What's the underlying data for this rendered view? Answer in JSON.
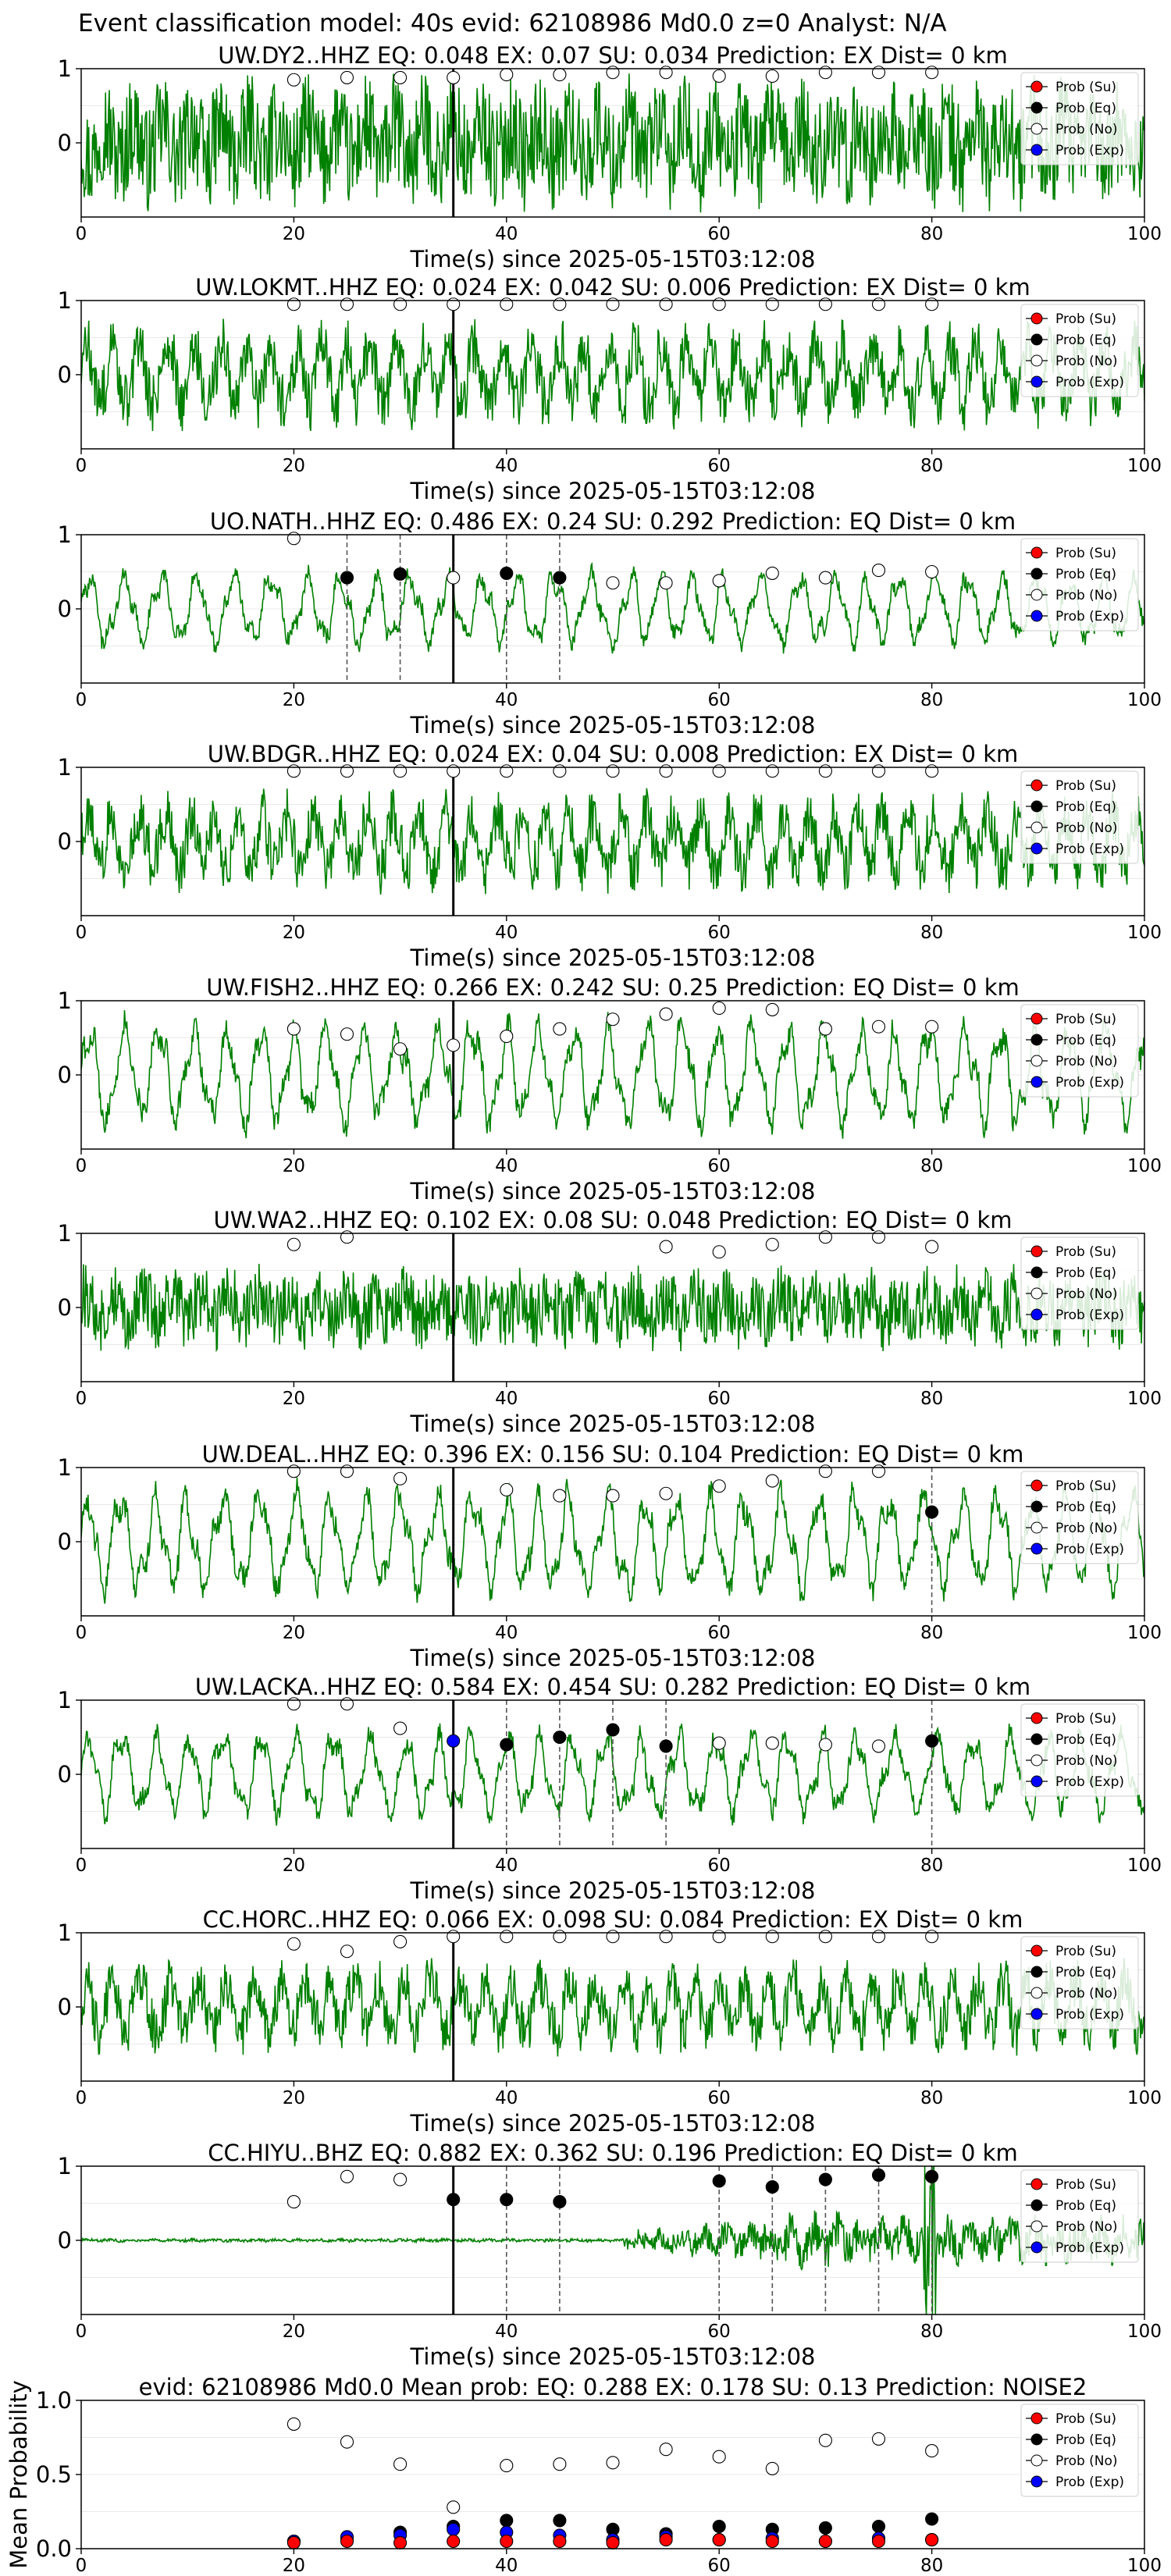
{
  "figure": {
    "suptitle": "Event classification model: 40s evid: 62108986 Md0.0 z=0 Analyst: N/A"
  },
  "colors": {
    "waveform": "#008000",
    "prob_su": "#ff0000",
    "prob_eq": "#000000",
    "prob_no": "#ffffff",
    "prob_exp": "#0000ff",
    "origin_line": "#000000",
    "pick_line": "#555555"
  },
  "legend": [
    "Prob (Su)",
    "Prob (Eq)",
    "Prob (No)",
    "Prob (Exp)"
  ],
  "chart_data": [
    {
      "type": "line",
      "title": "UW.DY2..HHZ   EQ: 0.048  EX: 0.07  SU: 0.034   Prediction: EX    Dist= 0 km",
      "xlabel": "Time(s) since 2025-05-15T03:12:08",
      "xlim": [
        0,
        100
      ],
      "ylim": [
        -1,
        1
      ],
      "xticks": [
        "0",
        "20",
        "40",
        "60",
        "80",
        "100"
      ],
      "yticks": [
        "1",
        "0"
      ],
      "legend_position": "top-right",
      "waveform": {
        "style": "noise",
        "amplitude": 0.95
      },
      "origin_x": 35,
      "dashed_x": [],
      "prob_su": {
        "x": [],
        "y": []
      },
      "prob_eq": {
        "x": [],
        "y": []
      },
      "prob_no": {
        "x": [
          20,
          25,
          30,
          35,
          40,
          45,
          50,
          55,
          60,
          65,
          70,
          75,
          80
        ],
        "y": [
          0.85,
          0.88,
          0.88,
          0.88,
          0.92,
          0.92,
          0.95,
          0.95,
          0.9,
          0.9,
          0.95,
          0.95,
          0.95
        ]
      },
      "prob_exp": {
        "x": [],
        "y": []
      }
    },
    {
      "type": "line",
      "title": "UW.LOKMT..HHZ   EQ: 0.024  EX: 0.042  SU: 0.006   Prediction: EX    Dist= 0 km",
      "xlabel": "Time(s) since 2025-05-15T03:12:08",
      "xlim": [
        0,
        100
      ],
      "ylim": [
        -1,
        1
      ],
      "xticks": [
        "0",
        "20",
        "40",
        "60",
        "80",
        "100"
      ],
      "yticks": [
        "1",
        "0"
      ],
      "legend_position": "top-right",
      "waveform": {
        "style": "mixed",
        "amplitude": 0.85
      },
      "origin_x": 35,
      "dashed_x": [],
      "prob_su": {
        "x": [],
        "y": []
      },
      "prob_eq": {
        "x": [],
        "y": []
      },
      "prob_no": {
        "x": [
          20,
          25,
          30,
          35,
          40,
          45,
          50,
          55,
          60,
          65,
          70,
          75,
          80
        ],
        "y": [
          0.95,
          0.95,
          0.95,
          0.95,
          0.95,
          0.95,
          0.95,
          0.95,
          0.95,
          0.95,
          0.95,
          0.95,
          0.95
        ]
      },
      "prob_exp": {
        "x": [],
        "y": []
      }
    },
    {
      "type": "line",
      "title": "UO.NATH..HHZ   EQ: 0.486  EX: 0.24  SU: 0.292   Prediction: EQ    Dist= 0 km",
      "xlabel": "Time(s) since 2025-05-15T03:12:08",
      "xlim": [
        0,
        100
      ],
      "ylim": [
        -1,
        1
      ],
      "xticks": [
        "0",
        "20",
        "40",
        "60",
        "80",
        "100"
      ],
      "yticks": [
        "1",
        "0"
      ],
      "legend_position": "top-right",
      "waveform": {
        "style": "wavy",
        "amplitude": 0.6
      },
      "origin_x": 35,
      "dashed_x": [
        25,
        30,
        40,
        45
      ],
      "prob_su": {
        "x": [],
        "y": []
      },
      "prob_eq": {
        "x": [
          25,
          30,
          40,
          45
        ],
        "y": [
          0.42,
          0.47,
          0.48,
          0.42
        ]
      },
      "prob_no": {
        "x": [
          20,
          35,
          50,
          55,
          60,
          65,
          70,
          75,
          80
        ],
        "y": [
          0.95,
          0.42,
          0.35,
          0.35,
          0.38,
          0.48,
          0.42,
          0.52,
          0.5
        ]
      },
      "prob_exp": {
        "x": [],
        "y": []
      }
    },
    {
      "type": "line",
      "title": "UW.BDGR..HHZ   EQ: 0.024  EX: 0.04  SU: 0.008   Prediction: EX    Dist= 0 km",
      "xlabel": "Time(s) since 2025-05-15T03:12:08",
      "xlim": [
        0,
        100
      ],
      "ylim": [
        -1,
        1
      ],
      "xticks": [
        "0",
        "20",
        "40",
        "60",
        "80",
        "100"
      ],
      "yticks": [
        "1",
        "0"
      ],
      "legend_position": "top-right",
      "waveform": {
        "style": "mixed",
        "amplitude": 0.8
      },
      "origin_x": 35,
      "dashed_x": [],
      "prob_su": {
        "x": [],
        "y": []
      },
      "prob_eq": {
        "x": [],
        "y": []
      },
      "prob_no": {
        "x": [
          20,
          25,
          30,
          35,
          40,
          45,
          50,
          55,
          60,
          65,
          70,
          75,
          80
        ],
        "y": [
          0.95,
          0.95,
          0.95,
          0.95,
          0.95,
          0.95,
          0.95,
          0.95,
          0.95,
          0.95,
          0.95,
          0.95,
          0.95
        ]
      },
      "prob_exp": {
        "x": [],
        "y": []
      }
    },
    {
      "type": "line",
      "title": "UW.FISH2..HHZ   EQ: 0.266  EX: 0.242  SU: 0.25   Prediction: EQ    Dist= 0 km",
      "xlabel": "Time(s) since 2025-05-15T03:12:08",
      "xlim": [
        0,
        100
      ],
      "ylim": [
        -1,
        1
      ],
      "xticks": [
        "0",
        "20",
        "40",
        "60",
        "80",
        "100"
      ],
      "yticks": [
        "1",
        "0"
      ],
      "legend_position": "top-right",
      "waveform": {
        "style": "wavy",
        "amplitude": 0.85
      },
      "origin_x": 35,
      "dashed_x": [],
      "prob_su": {
        "x": [],
        "y": []
      },
      "prob_eq": {
        "x": [],
        "y": []
      },
      "prob_no": {
        "x": [
          20,
          25,
          30,
          35,
          40,
          45,
          50,
          55,
          60,
          65,
          70,
          75,
          80
        ],
        "y": [
          0.62,
          0.55,
          0.35,
          0.4,
          0.52,
          0.62,
          0.75,
          0.82,
          0.9,
          0.88,
          0.62,
          0.65,
          0.65
        ]
      },
      "prob_exp": {
        "x": [],
        "y": []
      }
    },
    {
      "type": "line",
      "title": "UW.WA2..HHZ   EQ: 0.102  EX: 0.08  SU: 0.048   Prediction: EQ    Dist= 0 km",
      "xlabel": "Time(s) since 2025-05-15T03:12:08",
      "xlim": [
        0,
        100
      ],
      "ylim": [
        -1,
        1
      ],
      "xticks": [
        "0",
        "20",
        "40",
        "60",
        "80",
        "100"
      ],
      "yticks": [
        "1",
        "0"
      ],
      "legend_position": "top-right",
      "waveform": {
        "style": "noise",
        "amplitude": 0.6
      },
      "origin_x": 35,
      "dashed_x": [],
      "prob_su": {
        "x": [],
        "y": []
      },
      "prob_eq": {
        "x": [],
        "y": []
      },
      "prob_no": {
        "x": [
          20,
          25,
          55,
          60,
          65,
          70,
          75,
          80
        ],
        "y": [
          0.85,
          0.95,
          0.82,
          0.75,
          0.85,
          0.95,
          0.95,
          0.82
        ]
      },
      "prob_exp": {
        "x": [],
        "y": []
      }
    },
    {
      "type": "line",
      "title": "UW.DEAL..HHZ   EQ: 0.396  EX: 0.156  SU: 0.104   Prediction: EQ    Dist= 0 km",
      "xlabel": "Time(s) since 2025-05-15T03:12:08",
      "xlim": [
        0,
        100
      ],
      "ylim": [
        -1,
        1
      ],
      "xticks": [
        "0",
        "20",
        "40",
        "60",
        "80",
        "100"
      ],
      "yticks": [
        "1",
        "0"
      ],
      "legend_position": "top-right",
      "waveform": {
        "style": "wavy",
        "amplitude": 0.85
      },
      "origin_x": 35,
      "dashed_x": [
        80
      ],
      "prob_su": {
        "x": [],
        "y": []
      },
      "prob_eq": {
        "x": [
          80
        ],
        "y": [
          0.4
        ]
      },
      "prob_no": {
        "x": [
          20,
          25,
          30,
          40,
          45,
          50,
          55,
          60,
          65,
          70,
          75
        ],
        "y": [
          0.95,
          0.95,
          0.85,
          0.7,
          0.62,
          0.62,
          0.65,
          0.75,
          0.82,
          0.95,
          0.95
        ]
      },
      "prob_exp": {
        "x": [],
        "y": []
      }
    },
    {
      "type": "line",
      "title": "UW.LACKA..HHZ   EQ: 0.584  EX: 0.454  SU: 0.282   Prediction: EQ    Dist= 0 km",
      "xlabel": "Time(s) since 2025-05-15T03:12:08",
      "xlim": [
        0,
        100
      ],
      "ylim": [
        -1,
        1
      ],
      "xticks": [
        "0",
        "20",
        "40",
        "60",
        "80",
        "100"
      ],
      "yticks": [
        "1",
        "0"
      ],
      "legend_position": "top-right",
      "waveform": {
        "style": "wavy",
        "amplitude": 0.7
      },
      "origin_x": 35,
      "dashed_x": [
        40,
        45,
        50,
        55,
        80
      ],
      "prob_su": {
        "x": [],
        "y": []
      },
      "prob_eq": {
        "x": [
          40,
          45,
          50,
          55,
          80
        ],
        "y": [
          0.4,
          0.5,
          0.6,
          0.38,
          0.45
        ]
      },
      "prob_no": {
        "x": [
          20,
          25,
          30,
          60,
          65,
          70,
          75
        ],
        "y": [
          0.95,
          0.95,
          0.62,
          0.42,
          0.42,
          0.4,
          0.38
        ]
      },
      "prob_exp": {
        "x": [
          35
        ],
        "y": [
          0.45
        ]
      }
    },
    {
      "type": "line",
      "title": "CC.HORC..HHZ   EQ: 0.066  EX: 0.098  SU: 0.084   Prediction: EX    Dist= 0 km",
      "xlabel": "Time(s) since 2025-05-15T03:12:08",
      "xlim": [
        0,
        100
      ],
      "ylim": [
        -1,
        1
      ],
      "xticks": [
        "0",
        "20",
        "40",
        "60",
        "80",
        "100"
      ],
      "yticks": [
        "1",
        "0"
      ],
      "legend_position": "top-right",
      "waveform": {
        "style": "mixed",
        "amplitude": 0.75
      },
      "origin_x": 35,
      "dashed_x": [],
      "prob_su": {
        "x": [],
        "y": []
      },
      "prob_eq": {
        "x": [],
        "y": []
      },
      "prob_no": {
        "x": [
          20,
          25,
          30,
          35,
          40,
          45,
          50,
          55,
          60,
          65,
          70,
          75,
          80
        ],
        "y": [
          0.85,
          0.75,
          0.88,
          0.95,
          0.95,
          0.95,
          0.95,
          0.95,
          0.95,
          0.95,
          0.95,
          0.95,
          0.95
        ]
      },
      "prob_exp": {
        "x": [],
        "y": []
      }
    },
    {
      "type": "line",
      "title": "CC.HIYU..BHZ   EQ: 0.882  EX: 0.362  SU: 0.196   Prediction: EQ    Dist= 0 km",
      "xlabel": "Time(s) since 2025-05-15T03:12:08",
      "xlim": [
        0,
        100
      ],
      "ylim": [
        -1,
        1
      ],
      "xticks": [
        "0",
        "20",
        "40",
        "60",
        "80",
        "100"
      ],
      "yticks": [
        "1",
        "0"
      ],
      "legend_position": "top-right",
      "waveform": {
        "style": "quiet_event",
        "amplitude": 0.9
      },
      "origin_x": 35,
      "dashed_x": [
        40,
        45,
        60,
        65,
        70,
        75,
        80
      ],
      "prob_su": {
        "x": [],
        "y": []
      },
      "prob_eq": {
        "x": [
          35,
          40,
          45,
          60,
          65,
          70,
          75,
          80
        ],
        "y": [
          0.55,
          0.55,
          0.52,
          0.8,
          0.72,
          0.82,
          0.88,
          0.86
        ]
      },
      "prob_no": {
        "x": [
          20,
          25,
          30
        ],
        "y": [
          0.52,
          0.86,
          0.82
        ]
      },
      "prob_exp": {
        "x": [],
        "y": []
      }
    },
    {
      "type": "scatter",
      "title": "evid: 62108986  Md0.0   Mean prob:   EQ: 0.288  EX: 0.178  SU: 0.13   Prediction: NOISE2",
      "xlabel": "",
      "ylabel": "Mean Probability",
      "xlim": [
        0,
        100
      ],
      "ylim": [
        0,
        1
      ],
      "xticks": [
        "0",
        "20",
        "40",
        "60",
        "80",
        "100"
      ],
      "yticks": [
        "1.0",
        "0.5",
        "0.0"
      ],
      "legend_position": "top-right",
      "prob_su": {
        "x": [
          20,
          25,
          30,
          35,
          40,
          45,
          50,
          55,
          60,
          65,
          70,
          75,
          80
        ],
        "y": [
          0.04,
          0.05,
          0.04,
          0.05,
          0.05,
          0.05,
          0.04,
          0.06,
          0.06,
          0.05,
          0.05,
          0.05,
          0.06
        ]
      },
      "prob_eq": {
        "x": [
          20,
          25,
          30,
          35,
          40,
          45,
          50,
          55,
          60,
          65,
          70,
          75,
          80
        ],
        "y": [
          0.05,
          0.07,
          0.11,
          0.15,
          0.19,
          0.19,
          0.13,
          0.1,
          0.15,
          0.13,
          0.14,
          0.15,
          0.2
        ]
      },
      "prob_no": {
        "x": [
          20,
          25,
          30,
          35,
          40,
          45,
          50,
          55,
          60,
          65,
          70,
          75,
          80
        ],
        "y": [
          0.84,
          0.72,
          0.57,
          0.28,
          0.56,
          0.57,
          0.58,
          0.67,
          0.62,
          0.54,
          0.73,
          0.74,
          0.66
        ]
      },
      "prob_exp": {
        "x": [
          20,
          25,
          30,
          35,
          40,
          45,
          50,
          55,
          60,
          65,
          70,
          75,
          80
        ],
        "y": [
          0.05,
          0.08,
          0.09,
          0.13,
          0.11,
          0.09,
          0.06,
          0.08,
          0.06,
          0.07,
          0.05,
          0.07,
          0.06
        ]
      }
    }
  ]
}
